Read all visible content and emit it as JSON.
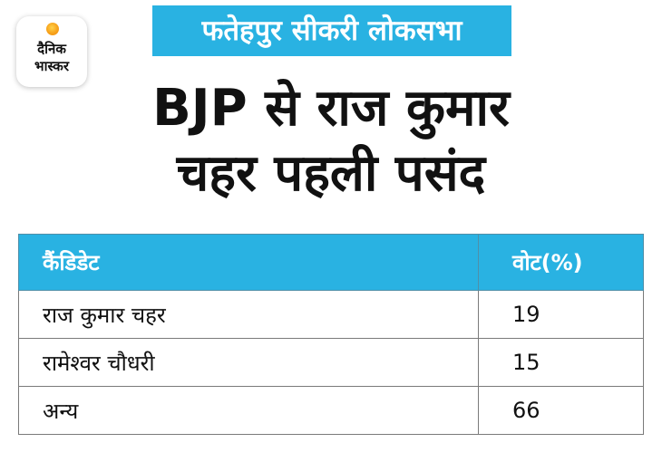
{
  "logo": {
    "line1": "दैनिक",
    "line2": "भास्कर"
  },
  "banner": {
    "text": "फतेहपुर सीकरी लोकसभा"
  },
  "headline": {
    "line1": "BJP से राज कुमार",
    "line2": "चहर पहली पसंद"
  },
  "table": {
    "headers": [
      "कैंडिडेट",
      "वोट(%)"
    ],
    "rows": [
      {
        "candidate": "राज कुमार चहर",
        "vote": "19"
      },
      {
        "candidate": "रामेश्वर चौधरी",
        "vote": "15"
      },
      {
        "candidate": "अन्य",
        "vote": "66"
      }
    ]
  },
  "colors": {
    "accent": "#29b2e2",
    "text": "#111111",
    "logo_sun": "#f7a21b"
  }
}
